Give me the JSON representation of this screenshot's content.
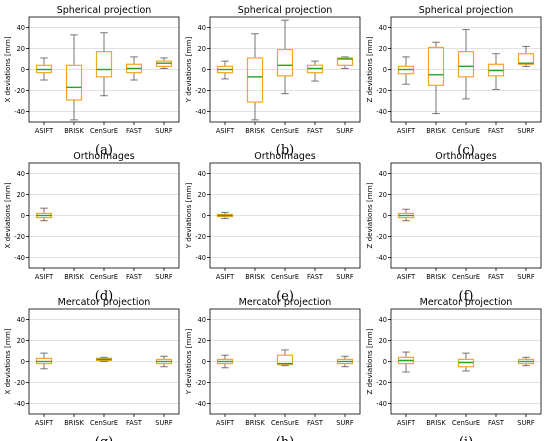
{
  "figure": {
    "categories": [
      "ASIFT",
      "BRISK",
      "CenSurE",
      "FAST",
      "SURF"
    ],
    "ylim": [
      -50,
      50
    ],
    "yticks": [
      -40,
      -20,
      0,
      20,
      40
    ],
    "colors": {
      "box": "#f5a623",
      "median": "#2ca02c",
      "whisker": "#666666",
      "grid": "#d9d9d9"
    }
  },
  "chart_data": [
    {
      "type": "box",
      "title": "Spherical projection",
      "ylabel": "X deviations [mm]",
      "caption": "(a)",
      "categories": [
        "ASIFT",
        "BRISK",
        "CenSurE",
        "FAST",
        "SURF"
      ],
      "boxes": [
        {
          "category": "ASIFT",
          "whislo": -10,
          "q1": -3,
          "med": 0,
          "q3": 4,
          "whishi": 11
        },
        {
          "category": "BRISK",
          "whislo": -48,
          "q1": -29,
          "med": -17,
          "q3": 4,
          "whishi": 33
        },
        {
          "category": "CenSurE",
          "whislo": -25,
          "q1": -7,
          "med": 0,
          "q3": 17,
          "whishi": 35
        },
        {
          "category": "FAST",
          "whislo": -10,
          "q1": -3,
          "med": 1,
          "q3": 5,
          "whishi": 12
        },
        {
          "category": "SURF",
          "whislo": 1,
          "q1": 3,
          "med": 6,
          "q3": 8,
          "whishi": 11
        }
      ]
    },
    {
      "type": "box",
      "title": "Spherical projection",
      "ylabel": "Y deviations [mm]",
      "caption": "(b)",
      "categories": [
        "ASIFT",
        "BRISK",
        "CenSurE",
        "FAST",
        "SURF"
      ],
      "boxes": [
        {
          "category": "ASIFT",
          "whislo": -9,
          "q1": -3,
          "med": 0,
          "q3": 3,
          "whishi": 8
        },
        {
          "category": "BRISK",
          "whislo": -48,
          "q1": -31,
          "med": -7,
          "q3": 11,
          "whishi": 34
        },
        {
          "category": "CenSurE",
          "whislo": -23,
          "q1": -6,
          "med": 4,
          "q3": 19,
          "whishi": 47
        },
        {
          "category": "FAST",
          "whislo": -11,
          "q1": -3,
          "med": 1,
          "q3": 4,
          "whishi": 8
        },
        {
          "category": "SURF",
          "whislo": 1,
          "q1": 4,
          "med": 10,
          "q3": 11,
          "whishi": 12
        }
      ]
    },
    {
      "type": "box",
      "title": "Spherical projection",
      "ylabel": "Z deviations [mm]",
      "caption": "(c)",
      "categories": [
        "ASIFT",
        "BRISK",
        "CenSurE",
        "FAST",
        "SURF"
      ],
      "boxes": [
        {
          "category": "ASIFT",
          "whislo": -14,
          "q1": -4,
          "med": 0,
          "q3": 3,
          "whishi": 12
        },
        {
          "category": "BRISK",
          "whislo": -42,
          "q1": -15,
          "med": -5,
          "q3": 21,
          "whishi": 26
        },
        {
          "category": "CenSurE",
          "whislo": -28,
          "q1": -7,
          "med": 3,
          "q3": 17,
          "whishi": 38
        },
        {
          "category": "FAST",
          "whislo": -19,
          "q1": -6,
          "med": -1,
          "q3": 5,
          "whishi": 15
        },
        {
          "category": "SURF",
          "whislo": 3,
          "q1": 5,
          "med": 6,
          "q3": 15,
          "whishi": 22
        }
      ]
    },
    {
      "type": "box",
      "title": "Orthoimages",
      "ylabel": "X deviations [mm]",
      "caption": "(d)",
      "categories": [
        "ASIFT",
        "BRISK",
        "CenSurE",
        "FAST",
        "SURF"
      ],
      "boxes": [
        {
          "category": "ASIFT",
          "whislo": -5,
          "q1": -2,
          "med": 0,
          "q3": 2,
          "whishi": 7
        },
        {
          "category": "BRISK",
          "whislo": null,
          "q1": null,
          "med": null,
          "q3": null,
          "whishi": null
        },
        {
          "category": "CenSurE",
          "whislo": null,
          "q1": null,
          "med": null,
          "q3": null,
          "whishi": null
        },
        {
          "category": "FAST",
          "whislo": null,
          "q1": null,
          "med": null,
          "q3": null,
          "whishi": null
        },
        {
          "category": "SURF",
          "whislo": null,
          "q1": null,
          "med": null,
          "q3": null,
          "whishi": null
        }
      ]
    },
    {
      "type": "box",
      "title": "Orthoimages",
      "ylabel": "Y deviations [mm]",
      "caption": "(e)",
      "categories": [
        "ASIFT",
        "BRISK",
        "CenSurE",
        "FAST",
        "SURF"
      ],
      "boxes": [
        {
          "category": "ASIFT",
          "whislo": -3,
          "q1": -1,
          "med": 0,
          "q3": 1,
          "whishi": 3
        },
        {
          "category": "BRISK",
          "whislo": null,
          "q1": null,
          "med": null,
          "q3": null,
          "whishi": null
        },
        {
          "category": "CenSurE",
          "whislo": null,
          "q1": null,
          "med": null,
          "q3": null,
          "whishi": null
        },
        {
          "category": "FAST",
          "whislo": null,
          "q1": null,
          "med": null,
          "q3": null,
          "whishi": null
        },
        {
          "category": "SURF",
          "whislo": null,
          "q1": null,
          "med": null,
          "q3": null,
          "whishi": null
        }
      ]
    },
    {
      "type": "box",
      "title": "Orthoimages",
      "ylabel": "Z deviations [mm]",
      "caption": "(f)",
      "categories": [
        "ASIFT",
        "BRISK",
        "CenSurE",
        "FAST",
        "SURF"
      ],
      "boxes": [
        {
          "category": "ASIFT",
          "whislo": -5,
          "q1": -2,
          "med": 0,
          "q3": 2,
          "whishi": 6
        },
        {
          "category": "BRISK",
          "whislo": null,
          "q1": null,
          "med": null,
          "q3": null,
          "whishi": null
        },
        {
          "category": "CenSurE",
          "whislo": null,
          "q1": null,
          "med": null,
          "q3": null,
          "whishi": null
        },
        {
          "category": "FAST",
          "whislo": null,
          "q1": null,
          "med": null,
          "q3": null,
          "whishi": null
        },
        {
          "category": "SURF",
          "whislo": null,
          "q1": null,
          "med": null,
          "q3": null,
          "whishi": null
        }
      ]
    },
    {
      "type": "box",
      "title": "Mercator projection",
      "ylabel": "X deviations [mm]",
      "caption": "(g)",
      "categories": [
        "ASIFT",
        "BRISK",
        "CenSurE",
        "FAST",
        "SURF"
      ],
      "boxes": [
        {
          "category": "ASIFT",
          "whislo": -7,
          "q1": -2,
          "med": 0,
          "q3": 3,
          "whishi": 8
        },
        {
          "category": "BRISK",
          "whislo": null,
          "q1": null,
          "med": null,
          "q3": null,
          "whishi": null
        },
        {
          "category": "CenSurE",
          "whislo": 0,
          "q1": 1,
          "med": 2,
          "q3": 3,
          "whishi": 4
        },
        {
          "category": "FAST",
          "whislo": null,
          "q1": null,
          "med": null,
          "q3": null,
          "whishi": null
        },
        {
          "category": "SURF",
          "whislo": -5,
          "q1": -2,
          "med": 0,
          "q3": 2,
          "whishi": 5
        }
      ]
    },
    {
      "type": "box",
      "title": "Mercator projection",
      "ylabel": "Y deviations [mm]",
      "caption": "(h)",
      "categories": [
        "ASIFT",
        "BRISK",
        "CenSurE",
        "FAST",
        "SURF"
      ],
      "boxes": [
        {
          "category": "ASIFT",
          "whislo": -6,
          "q1": -2,
          "med": 0,
          "q3": 2,
          "whishi": 6
        },
        {
          "category": "BRISK",
          "whislo": null,
          "q1": null,
          "med": null,
          "q3": null,
          "whishi": null
        },
        {
          "category": "CenSurE",
          "whislo": -4,
          "q1": -3,
          "med": -2,
          "q3": 6,
          "whishi": 11
        },
        {
          "category": "FAST",
          "whislo": null,
          "q1": null,
          "med": null,
          "q3": null,
          "whishi": null
        },
        {
          "category": "SURF",
          "whislo": -5,
          "q1": -2,
          "med": 0,
          "q3": 2,
          "whishi": 5
        }
      ]
    },
    {
      "type": "box",
      "title": "Mercator projection",
      "ylabel": "Z deviations [mm]",
      "caption": "(i)",
      "categories": [
        "ASIFT",
        "BRISK",
        "CenSurE",
        "FAST",
        "SURF"
      ],
      "boxes": [
        {
          "category": "ASIFT",
          "whislo": -10,
          "q1": -2,
          "med": 1,
          "q3": 4,
          "whishi": 9
        },
        {
          "category": "BRISK",
          "whislo": null,
          "q1": null,
          "med": null,
          "q3": null,
          "whishi": null
        },
        {
          "category": "CenSurE",
          "whislo": -9,
          "q1": -5,
          "med": -1,
          "q3": 2,
          "whishi": 8
        },
        {
          "category": "FAST",
          "whislo": null,
          "q1": null,
          "med": null,
          "q3": null,
          "whishi": null
        },
        {
          "category": "SURF",
          "whislo": -4,
          "q1": -2,
          "med": 0,
          "q3": 2,
          "whishi": 4
        }
      ]
    }
  ]
}
